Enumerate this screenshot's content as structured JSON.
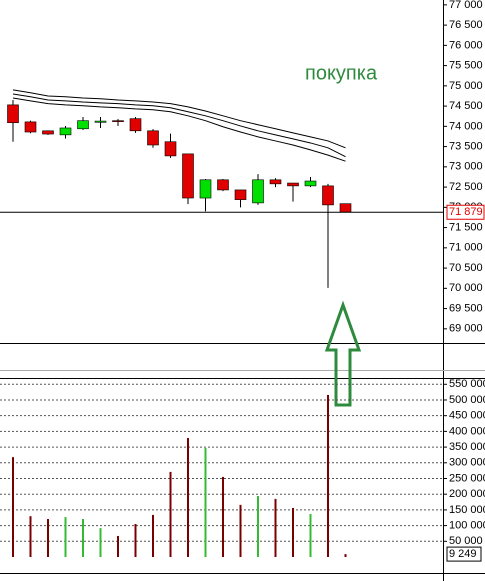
{
  "chart_data": [
    {
      "type": "candlestick",
      "annotation": "покупка",
      "open": [
        74530,
        74110,
        73890,
        73790,
        73940,
        74100,
        74140,
        74190,
        73890,
        73620,
        73320,
        72230,
        72680,
        72430,
        72110,
        72680,
        72600,
        72530,
        72530,
        72090
      ],
      "high": [
        74650,
        74140,
        73900,
        74010,
        74230,
        74230,
        74180,
        74230,
        73930,
        73820,
        73320,
        72700,
        72700,
        72430,
        72820,
        72720,
        72600,
        72750,
        72580,
        72090
      ],
      "low": [
        73620,
        73830,
        73790,
        73700,
        73910,
        73960,
        74010,
        73840,
        73470,
        73220,
        72080,
        71900,
        72400,
        72000,
        72060,
        72500,
        72140,
        72500,
        70010,
        71880
      ],
      "close": [
        74090,
        73860,
        73810,
        73960,
        74140,
        74130,
        74130,
        73890,
        73540,
        73270,
        72230,
        72680,
        72430,
        72190,
        72680,
        72580,
        72530,
        72650,
        72060,
        71880
      ],
      "up_color": "#00e000",
      "down_color": "#e00000",
      "series": [
        {
          "color": "#000000",
          "values": [
            74900,
            74830,
            74750,
            74730,
            74700,
            74680,
            74650,
            74630,
            74600,
            74560,
            74480,
            74380,
            74260,
            74140,
            74040,
            73940,
            73840,
            73740,
            73640,
            73470
          ]
        },
        {
          "color": "#000000",
          "values": [
            74800,
            74730,
            74650,
            74630,
            74600,
            74580,
            74560,
            74530,
            74510,
            74460,
            74360,
            74260,
            74140,
            74010,
            73890,
            73790,
            73690,
            73590,
            73470,
            73250
          ]
        },
        {
          "color": "#000000",
          "values": [
            74700,
            74630,
            74560,
            74530,
            74510,
            74480,
            74460,
            74430,
            74410,
            74360,
            74260,
            74140,
            73990,
            73860,
            73740,
            73640,
            73540,
            73420,
            73290,
            73140
          ]
        }
      ],
      "last_price": {
        "value": 71879,
        "label": "71 879"
      },
      "last_price_color": "#e00000",
      "ylim": [
        68650,
        77120
      ],
      "yticks": [
        {
          "value": 69000,
          "label": "69 000"
        },
        {
          "value": 69500,
          "label": "69 500"
        },
        {
          "value": 70000,
          "label": "70 000"
        },
        {
          "value": 70500,
          "label": "70 500"
        },
        {
          "value": 71000,
          "label": "71 000"
        },
        {
          "value": 71500,
          "label": "71 500"
        },
        {
          "value": 72000,
          "label": "72 000"
        },
        {
          "value": 72500,
          "label": "72 500"
        },
        {
          "value": 73000,
          "label": "73 000"
        },
        {
          "value": 73500,
          "label": "73 500"
        },
        {
          "value": 74000,
          "label": "74 000"
        },
        {
          "value": 74500,
          "label": "74 500"
        },
        {
          "value": 75000,
          "label": "75 000"
        },
        {
          "value": 75500,
          "label": "75 500"
        },
        {
          "value": 76000,
          "label": "76 000"
        },
        {
          "value": 76500,
          "label": "76 500"
        },
        {
          "value": 77000,
          "label": "77 000"
        }
      ],
      "grid": false
    },
    {
      "type": "bar",
      "values": [
        318000,
        130000,
        121000,
        127000,
        121000,
        92000,
        67000,
        105000,
        134000,
        271000,
        379000,
        347000,
        255000,
        166000,
        194000,
        185000,
        156000,
        137000,
        516000,
        9249
      ],
      "up_color": "#33bb33",
      "down_color": "#7a0000",
      "last_value": {
        "value": 9249,
        "label": "9 249"
      },
      "ylim": [
        0,
        570000
      ],
      "yticks": [
        {
          "value": 50000,
          "label": "50 000"
        },
        {
          "value": 100000,
          "label": "100 000"
        },
        {
          "value": 150000,
          "label": "150 000"
        },
        {
          "value": 200000,
          "label": "200 000"
        },
        {
          "value": 250000,
          "label": "250 000"
        },
        {
          "value": 300000,
          "label": "300 000"
        },
        {
          "value": 350000,
          "label": "350 000"
        },
        {
          "value": 400000,
          "label": "400 000"
        },
        {
          "value": 450000,
          "label": "450 000"
        },
        {
          "value": 500000,
          "label": "500 000"
        },
        {
          "value": 550000,
          "label": "550 000"
        }
      ],
      "grid": true
    }
  ]
}
